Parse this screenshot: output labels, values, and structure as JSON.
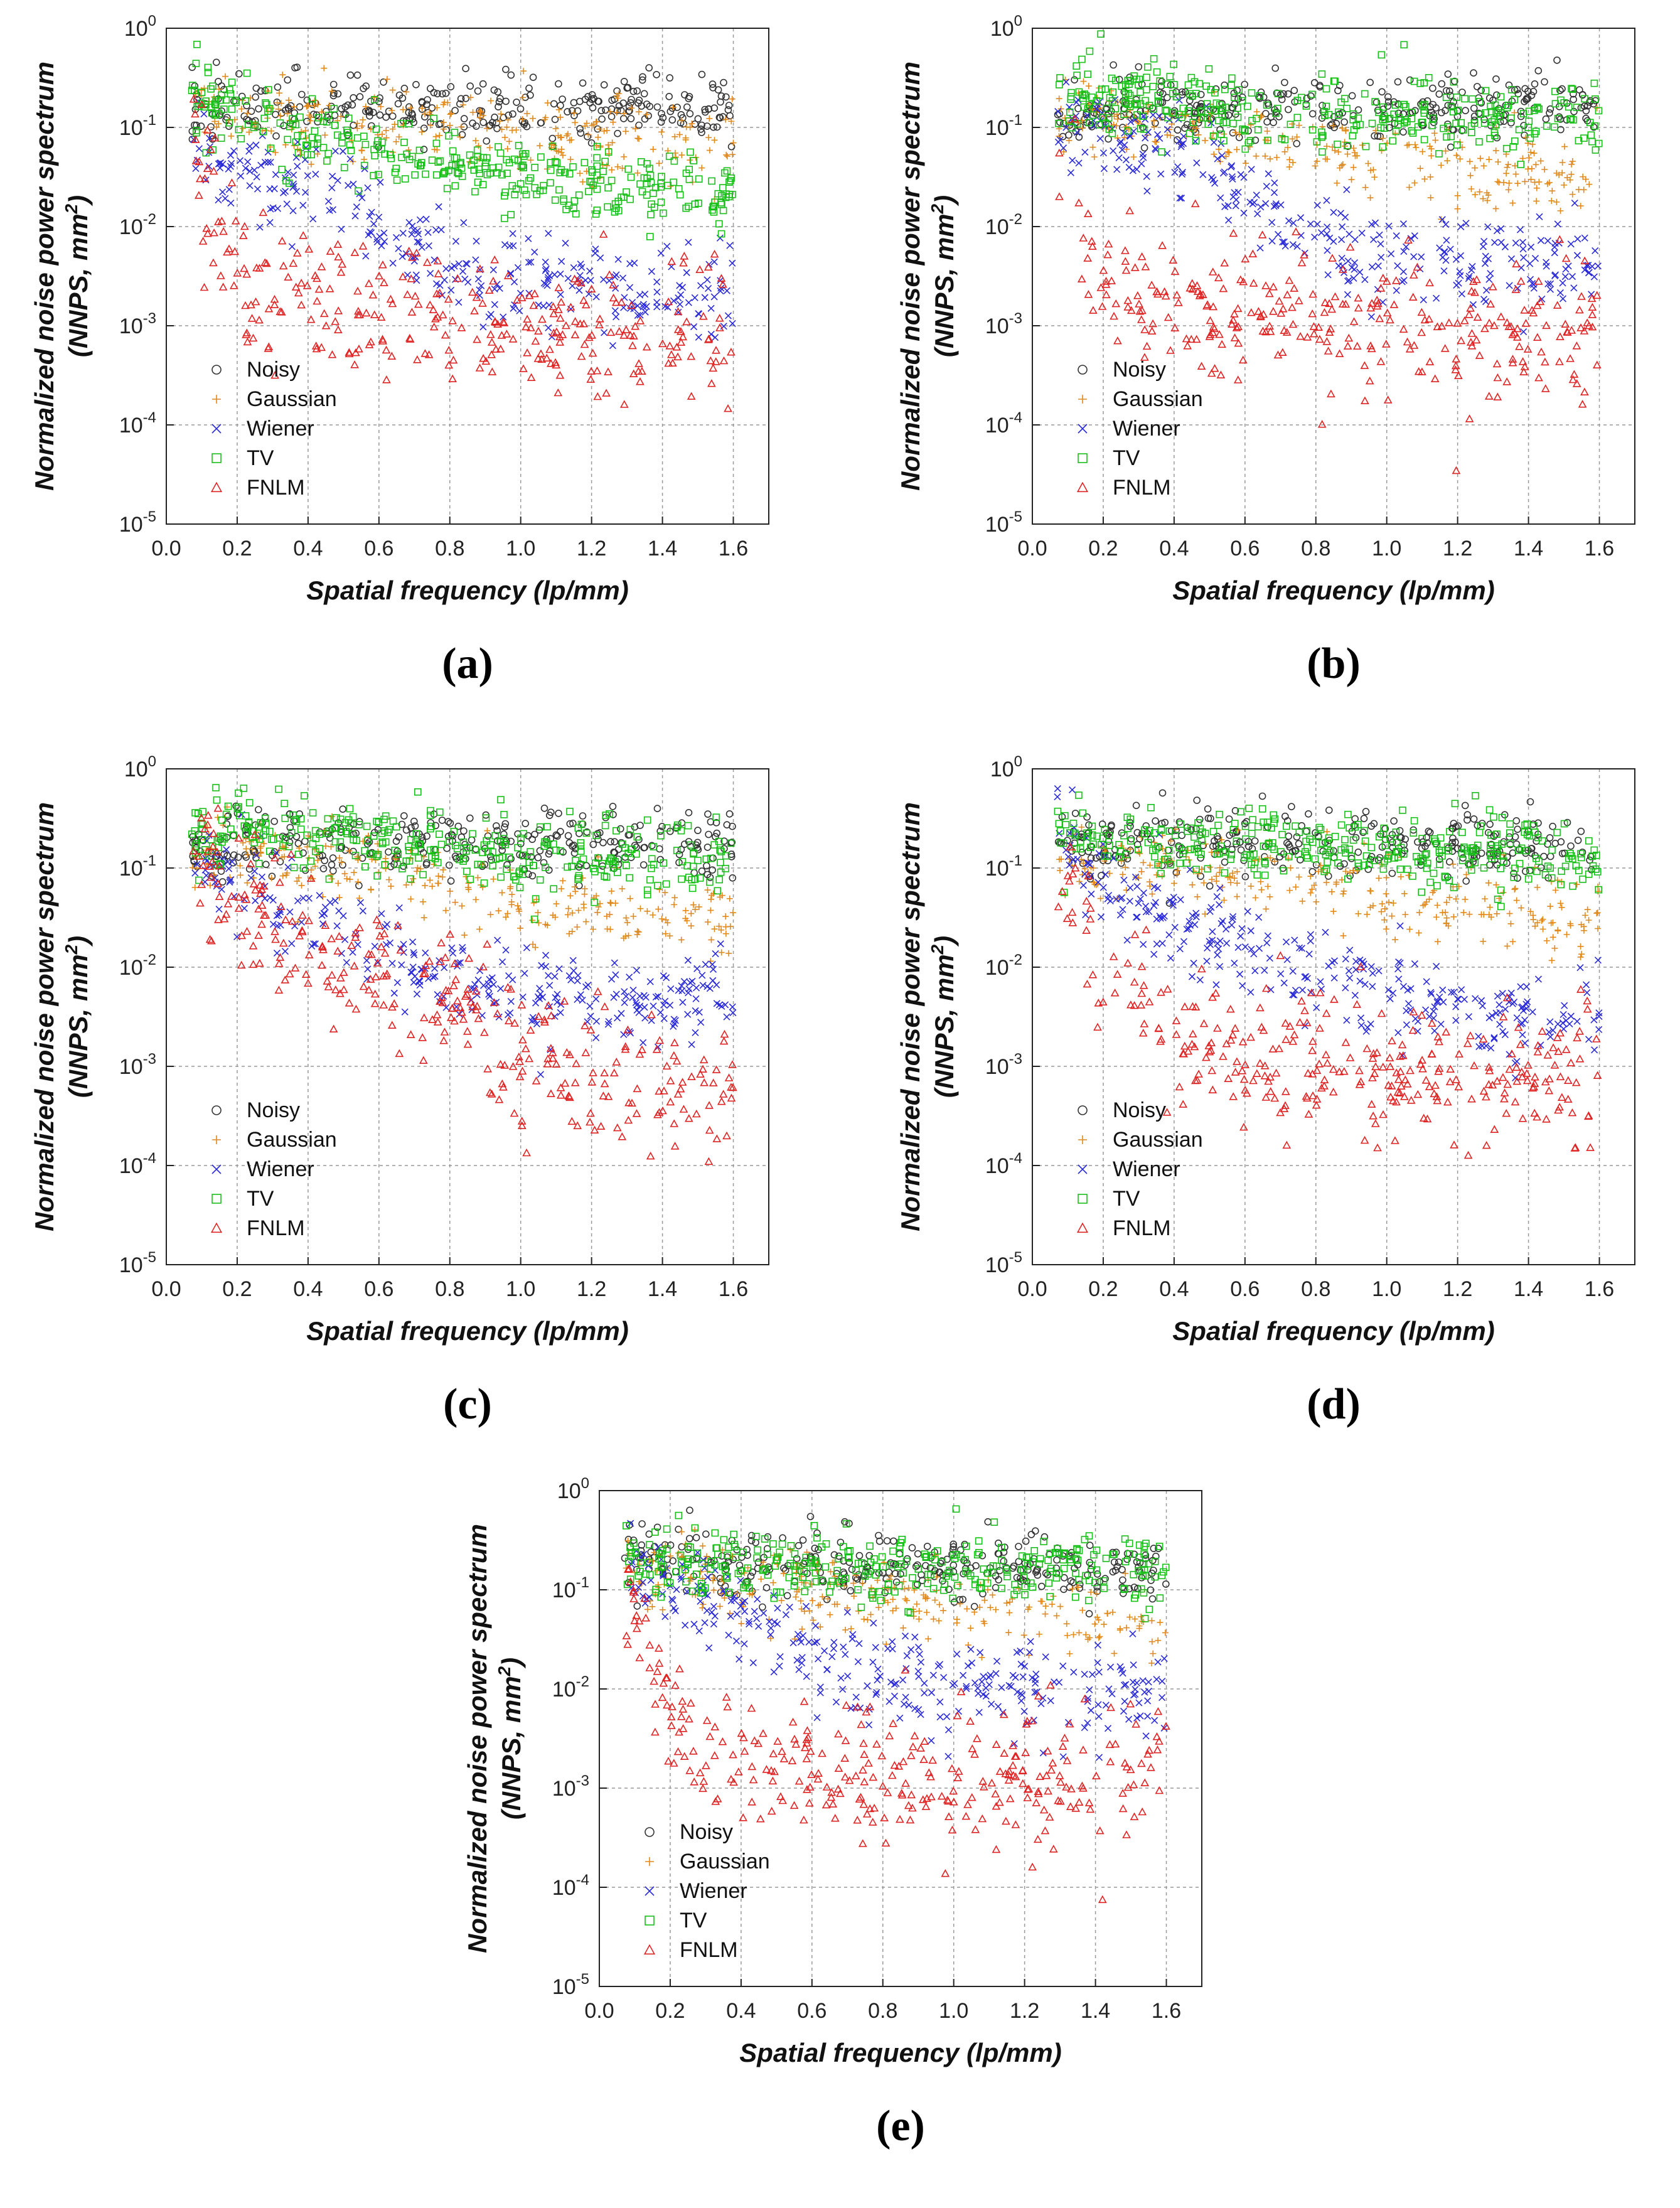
{
  "figure": {
    "legend": [
      {
        "name": "Noisy",
        "marker": "circle",
        "color": "#333333"
      },
      {
        "name": "Gaussian",
        "marker": "plus",
        "color": "#E08A1E"
      },
      {
        "name": "Wiener",
        "marker": "cross",
        "color": "#2B2BD8"
      },
      {
        "name": "TV",
        "marker": "square",
        "color": "#19C019"
      },
      {
        "name": "FNLM",
        "marker": "triangle",
        "color": "#E02424"
      }
    ],
    "xlabel": "Spatial frequency (lp/mm)",
    "ylabel_line1": "Normalized noise power spectrum",
    "ylabel_line2_pre": "(NNPS, mm",
    "ylabel_line2_sup": "2",
    "ylabel_line2_post": ")",
    "xticks": [
      "0.0",
      "0.2",
      "0.4",
      "0.6",
      "0.8",
      "1.0",
      "1.2",
      "1.4",
      "1.6"
    ],
    "yticks": [
      {
        "base": "10",
        "exp": "0"
      },
      {
        "base": "10",
        "exp": "-1"
      },
      {
        "base": "10",
        "exp": "-2"
      },
      {
        "base": "10",
        "exp": "-3"
      },
      {
        "base": "10",
        "exp": "-4"
      },
      {
        "base": "10",
        "exp": "-5"
      }
    ]
  },
  "chart_data": [
    {
      "panel_label": "(a)",
      "type": "scatter",
      "xlim": [
        0.0,
        1.7
      ],
      "ylim": [
        1e-05,
        1
      ],
      "yscale": "log",
      "grid": true,
      "legend_position": "lower-left",
      "x": [
        0.07,
        0.2,
        0.4,
        0.6,
        0.8,
        1.0,
        1.2,
        1.4,
        1.6
      ],
      "series": [
        {
          "name": "Noisy",
          "values": [
            0.15,
            0.16,
            0.16,
            0.17,
            0.16,
            0.16,
            0.17,
            0.16,
            0.16
          ]
        },
        {
          "name": "Gaussian",
          "values": [
            0.15,
            0.14,
            0.12,
            0.1,
            0.09,
            0.09,
            0.08,
            0.08,
            0.07
          ]
        },
        {
          "name": "Wiener",
          "values": [
            0.06,
            0.04,
            0.03,
            0.01,
            0.004,
            0.003,
            0.0025,
            0.002,
            0.0025
          ]
        },
        {
          "name": "TV",
          "values": [
            0.2,
            0.15,
            0.08,
            0.05,
            0.04,
            0.035,
            0.03,
            0.025,
            0.02
          ]
        },
        {
          "name": "FNLM",
          "values": [
            0.05,
            0.003,
            0.002,
            0.0015,
            0.0012,
            0.001,
            0.0009,
            0.0008,
            0.0008
          ]
        }
      ]
    },
    {
      "panel_label": "(b)",
      "type": "scatter",
      "xlim": [
        0.0,
        1.7
      ],
      "ylim": [
        1e-05,
        1
      ],
      "yscale": "log",
      "grid": true,
      "legend_position": "lower-left",
      "x": [
        0.07,
        0.2,
        0.4,
        0.6,
        0.8,
        1.0,
        1.2,
        1.4,
        1.6
      ],
      "series": [
        {
          "name": "Noisy",
          "values": [
            0.12,
            0.15,
            0.16,
            0.17,
            0.17,
            0.16,
            0.17,
            0.17,
            0.16
          ]
        },
        {
          "name": "Gaussian",
          "values": [
            0.12,
            0.12,
            0.1,
            0.08,
            0.06,
            0.05,
            0.04,
            0.035,
            0.03
          ]
        },
        {
          "name": "Wiener",
          "values": [
            0.1,
            0.08,
            0.06,
            0.02,
            0.008,
            0.005,
            0.004,
            0.004,
            0.004
          ]
        },
        {
          "name": "TV",
          "values": [
            0.2,
            0.2,
            0.17,
            0.15,
            0.14,
            0.13,
            0.12,
            0.12,
            0.12
          ]
        },
        {
          "name": "FNLM",
          "values": [
            0.05,
            0.003,
            0.002,
            0.0015,
            0.0012,
            0.001,
            0.0009,
            0.0009,
            0.0008
          ]
        }
      ]
    },
    {
      "panel_label": "(c)",
      "type": "scatter",
      "xlim": [
        0.0,
        1.7
      ],
      "ylim": [
        1e-05,
        1
      ],
      "yscale": "log",
      "grid": true,
      "legend_position": "lower-left",
      "x": [
        0.07,
        0.2,
        0.4,
        0.6,
        0.8,
        1.0,
        1.2,
        1.4,
        1.6
      ],
      "series": [
        {
          "name": "Noisy",
          "values": [
            0.15,
            0.18,
            0.18,
            0.18,
            0.18,
            0.2,
            0.2,
            0.19,
            0.18
          ]
        },
        {
          "name": "Gaussian",
          "values": [
            0.15,
            0.15,
            0.12,
            0.1,
            0.07,
            0.05,
            0.04,
            0.035,
            0.03
          ]
        },
        {
          "name": "Wiener",
          "values": [
            0.1,
            0.08,
            0.04,
            0.015,
            0.008,
            0.006,
            0.005,
            0.005,
            0.005
          ]
        },
        {
          "name": "TV",
          "values": [
            0.2,
            0.25,
            0.2,
            0.18,
            0.15,
            0.14,
            0.13,
            0.12,
            0.12
          ]
        },
        {
          "name": "FNLM",
          "values": [
            0.15,
            0.06,
            0.015,
            0.008,
            0.005,
            0.001,
            0.0008,
            0.0007,
            0.0006
          ]
        }
      ]
    },
    {
      "panel_label": "(d)",
      "type": "scatter",
      "xlim": [
        0.0,
        1.7
      ],
      "ylim": [
        1e-05,
        1
      ],
      "yscale": "log",
      "grid": true,
      "legend_position": "lower-left",
      "x": [
        0.07,
        0.2,
        0.4,
        0.6,
        0.8,
        1.0,
        1.2,
        1.4,
        1.6
      ],
      "series": [
        {
          "name": "Noisy",
          "values": [
            0.18,
            0.18,
            0.17,
            0.17,
            0.17,
            0.17,
            0.17,
            0.17,
            0.16
          ]
        },
        {
          "name": "Gaussian",
          "values": [
            0.15,
            0.12,
            0.1,
            0.08,
            0.06,
            0.05,
            0.04,
            0.035,
            0.03
          ]
        },
        {
          "name": "Wiener",
          "values": [
            0.3,
            0.06,
            0.03,
            0.015,
            0.008,
            0.005,
            0.004,
            0.003,
            0.003
          ]
        },
        {
          "name": "TV",
          "values": [
            0.2,
            0.2,
            0.17,
            0.16,
            0.15,
            0.15,
            0.14,
            0.14,
            0.13
          ]
        },
        {
          "name": "FNLM",
          "values": [
            0.1,
            0.01,
            0.002,
            0.0012,
            0.001,
            0.0009,
            0.0008,
            0.0007,
            0.0006
          ]
        }
      ]
    },
    {
      "panel_label": "(e)",
      "type": "scatter",
      "xlim": [
        0.0,
        1.7
      ],
      "ylim": [
        1e-05,
        1
      ],
      "yscale": "log",
      "grid": true,
      "legend_position": "lower-left",
      "x": [
        0.07,
        0.2,
        0.4,
        0.6,
        0.8,
        1.0,
        1.2,
        1.4,
        1.6
      ],
      "series": [
        {
          "name": "Noisy",
          "values": [
            0.2,
            0.2,
            0.18,
            0.18,
            0.17,
            0.17,
            0.17,
            0.16,
            0.16
          ]
        },
        {
          "name": "Gaussian",
          "values": [
            0.15,
            0.15,
            0.12,
            0.1,
            0.08,
            0.07,
            0.06,
            0.05,
            0.04
          ]
        },
        {
          "name": "Wiener",
          "values": [
            0.15,
            0.12,
            0.06,
            0.02,
            0.012,
            0.01,
            0.01,
            0.01,
            0.012
          ]
        },
        {
          "name": "TV",
          "values": [
            0.2,
            0.2,
            0.18,
            0.18,
            0.17,
            0.17,
            0.16,
            0.16,
            0.15
          ]
        },
        {
          "name": "FNLM",
          "values": [
            0.1,
            0.005,
            0.002,
            0.0015,
            0.0013,
            0.0012,
            0.0012,
            0.0013,
            0.0015
          ]
        }
      ]
    }
  ]
}
